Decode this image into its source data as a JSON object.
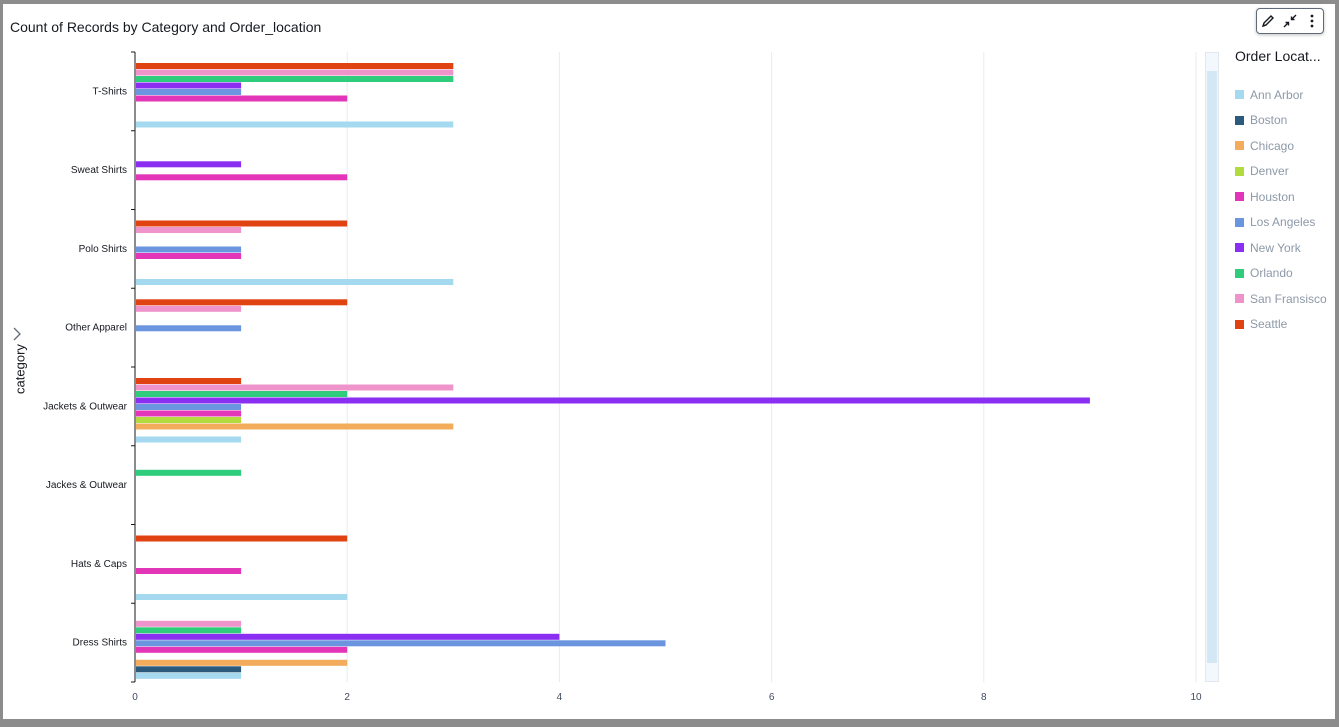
{
  "chart_title": "Count of Records by Category and Order_location",
  "y_axis_title": "category",
  "legend": {
    "title": "Order Locat...",
    "items": [
      {
        "label": "Ann Arbor",
        "color": "#a4d9ef"
      },
      {
        "label": "Boston",
        "color": "#2c5a7c"
      },
      {
        "label": "Chicago",
        "color": "#f2ac5c"
      },
      {
        "label": "Denver",
        "color": "#b2dc3e"
      },
      {
        "label": "Houston",
        "color": "#e335b8"
      },
      {
        "label": "Los Angeles",
        "color": "#6c95df"
      },
      {
        "label": "New York",
        "color": "#8a2ef2"
      },
      {
        "label": "Orlando",
        "color": "#2fcc7c"
      },
      {
        "label": "San Fransisco",
        "color": "#ef94cb"
      },
      {
        "label": "Seattle",
        "color": "#e14211"
      }
    ]
  },
  "chart_data": {
    "type": "bar",
    "orientation": "horizontal",
    "title": "Count of Records by Category and Order_location",
    "xlabel": "",
    "ylabel": "category",
    "xlim": [
      0,
      10
    ],
    "x_ticks": [
      "0",
      "2",
      "4",
      "6",
      "8",
      "10"
    ],
    "grid": true,
    "legend_position": "right",
    "categories": [
      "T-Shirts",
      "Sweat Shirts",
      "Polo Shirts",
      "Other Apparel",
      "Jackets & Outwear",
      "Jackes & Outwear",
      "Hats & Caps",
      "Dress Shirts"
    ],
    "series": [
      {
        "name": "Ann Arbor",
        "values": [
          3,
          0,
          3,
          0,
          1,
          0,
          2,
          1
        ]
      },
      {
        "name": "Boston",
        "values": [
          0,
          0,
          0,
          0,
          0,
          0,
          0,
          1
        ]
      },
      {
        "name": "Chicago",
        "values": [
          0,
          0,
          0,
          0,
          3,
          0,
          0,
          2
        ]
      },
      {
        "name": "Denver",
        "values": [
          0,
          0,
          0,
          0,
          1,
          0,
          0,
          0
        ]
      },
      {
        "name": "Houston",
        "values": [
          2,
          2,
          1,
          0,
          1,
          0,
          1,
          2
        ]
      },
      {
        "name": "Los Angeles",
        "values": [
          1,
          0,
          1,
          1,
          1,
          0,
          0,
          5
        ]
      },
      {
        "name": "New York",
        "values": [
          1,
          1,
          0,
          0,
          9,
          0,
          0,
          4
        ]
      },
      {
        "name": "Orlando",
        "values": [
          3,
          0,
          0,
          0,
          2,
          1,
          0,
          1
        ]
      },
      {
        "name": "San Fransisco",
        "values": [
          3,
          0,
          1,
          1,
          3,
          0,
          0,
          1
        ]
      },
      {
        "name": "Seattle",
        "values": [
          3,
          0,
          2,
          2,
          1,
          0,
          2,
          0
        ]
      }
    ]
  }
}
